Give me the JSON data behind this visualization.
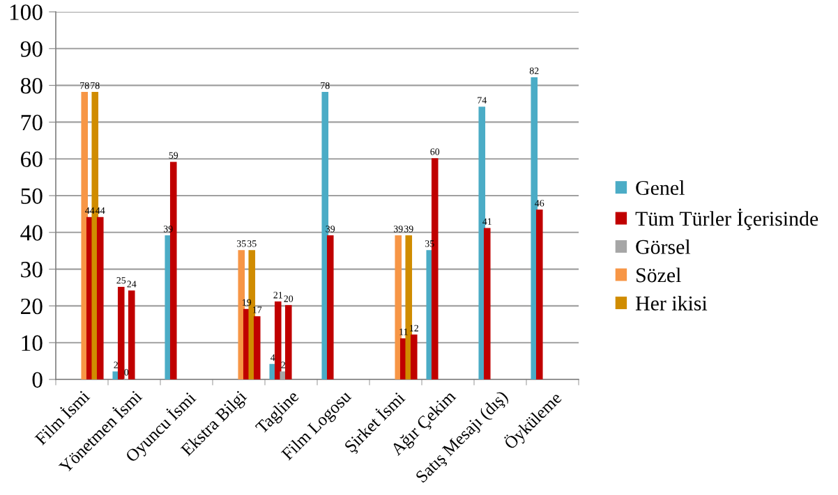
{
  "chart_data": {
    "type": "bar",
    "categories": [
      "Film İsmi",
      "Yönetmen İsmi",
      "Oyuncu İsmi",
      "Ekstra Bilgi",
      "Tagline",
      "Film Logosu",
      "Şirket İsmi",
      "Ağır Çekim",
      "Satış Mesajı (dış)",
      "Öyküleme"
    ],
    "series": [
      {
        "name": "Genel",
        "color": "#4bacc6",
        "values": [
          null,
          2,
          39,
          null,
          4,
          78,
          null,
          35,
          74,
          82
        ]
      },
      {
        "name": "Tüm Türler İçerisinde",
        "color": "#c00000",
        "values": [
          null,
          25,
          59,
          null,
          21,
          39,
          null,
          60,
          41,
          46
        ]
      },
      {
        "name": "Görsel",
        "color": "#a6a6a6",
        "values": [
          null,
          0,
          null,
          null,
          2,
          null,
          null,
          null,
          null,
          null
        ]
      },
      {
        "color": "#c00000",
        "values": [
          null,
          24,
          null,
          null,
          20,
          null,
          null,
          null,
          null,
          null
        ]
      },
      {
        "name": "Sözel",
        "color": "#f79646",
        "values": [
          78,
          null,
          null,
          35,
          null,
          null,
          39,
          null,
          null,
          null
        ]
      },
      {
        "color": "#c00000",
        "values": [
          44,
          null,
          null,
          19,
          null,
          null,
          11,
          null,
          null,
          null
        ]
      },
      {
        "name": "Her ikisi",
        "color": "#d08c00",
        "values": [
          78,
          null,
          null,
          35,
          null,
          null,
          39,
          null,
          null,
          null
        ]
      },
      {
        "color": "#c00000",
        "values": [
          44,
          null,
          null,
          17,
          null,
          null,
          12,
          null,
          null,
          null
        ]
      }
    ],
    "ylim": [
      0,
      100
    ],
    "yticks": [
      0,
      10,
      20,
      30,
      40,
      50,
      60,
      70,
      80,
      90,
      100
    ],
    "grid": "y",
    "legend": "right",
    "data_labels": true
  }
}
